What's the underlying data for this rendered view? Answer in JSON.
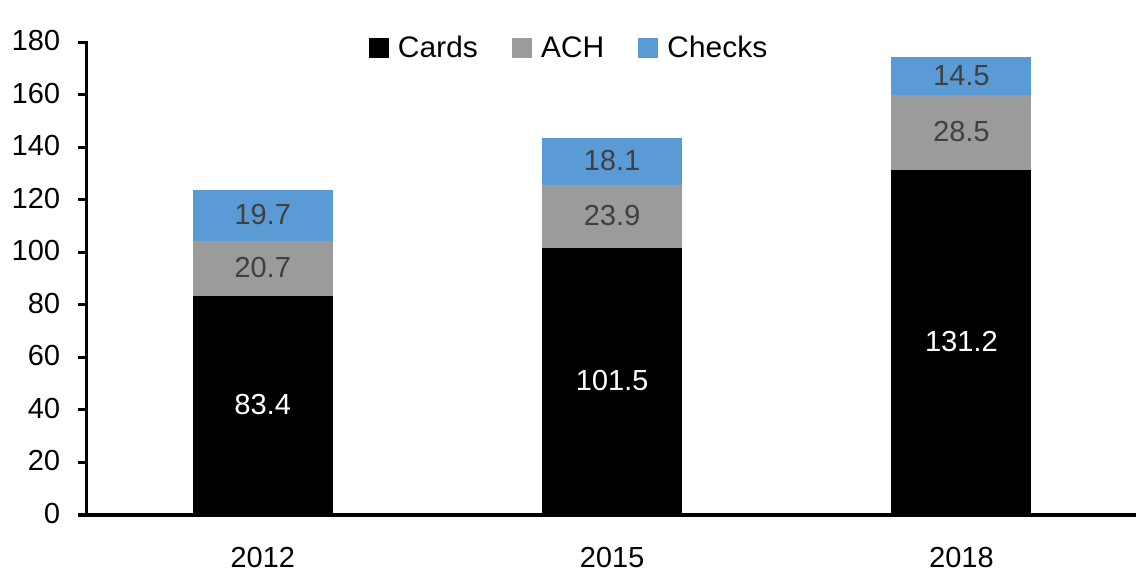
{
  "chart_data": {
    "type": "bar",
    "stacked": true,
    "title": "",
    "xlabel": "",
    "ylabel": "",
    "categories": [
      "2012",
      "2015",
      "2018"
    ],
    "series": [
      {
        "name": "Cards",
        "color": "#000000",
        "label_color": "#ffffff",
        "values": [
          83.4,
          101.5,
          131.2
        ]
      },
      {
        "name": "ACH",
        "color": "#9b9b9b",
        "label_color": "#404040",
        "values": [
          20.7,
          23.9,
          28.5
        ]
      },
      {
        "name": "Checks",
        "color": "#5b9bd5",
        "label_color": "#404040",
        "values": [
          19.7,
          18.1,
          14.5
        ]
      }
    ],
    "totals": [
      123.8,
      143.5,
      174.2
    ],
    "ylim": [
      0,
      180
    ],
    "ytick_step": 20,
    "yticks": [
      0,
      20,
      40,
      60,
      80,
      100,
      120,
      140,
      160,
      180
    ],
    "grid": false,
    "legend_position": "top-center",
    "axis_color": "#000000"
  }
}
